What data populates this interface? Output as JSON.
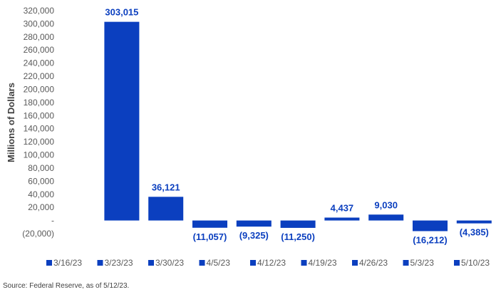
{
  "chart_data": {
    "type": "bar",
    "categories": [
      "3/16/23",
      "3/23/23",
      "3/30/23",
      "4/5/23",
      "4/12/23",
      "4/19/23",
      "4/26/23",
      "5/3/23",
      "5/10/23"
    ],
    "values": [
      303015,
      36121,
      -11057,
      -9325,
      -11250,
      4437,
      9030,
      -16212,
      -4385
    ],
    "data_labels": [
      "303,015",
      "36,121",
      "(11,057)",
      "(9,325)",
      "(11,250)",
      "4,437",
      "9,030",
      "(16,212)",
      "(4,385)"
    ],
    "ylabel": "Millions of Dollars",
    "ylim": [
      -20000,
      320000
    ],
    "y_ticks": [
      320000,
      300000,
      280000,
      260000,
      240000,
      220000,
      200000,
      180000,
      160000,
      140000,
      120000,
      100000,
      80000,
      60000,
      40000,
      20000,
      0,
      -20000
    ],
    "y_tick_labels": [
      "320,000",
      "300,000",
      "280,000",
      "260,000",
      "240,000",
      "220,000",
      "200,000",
      "180,000",
      "160,000",
      "140,000",
      "120,000",
      "100,000",
      "80,000",
      "60,000",
      "40,000",
      "20,000",
      "-",
      "(20,000)"
    ],
    "grid": false,
    "legend_position": "bottom",
    "bar_color": "#0b3fbf"
  },
  "source_note": "Source: Federal Reserve, as of 5/12/23."
}
